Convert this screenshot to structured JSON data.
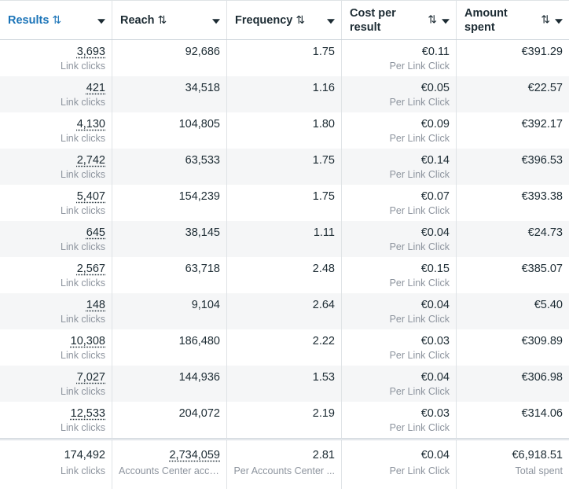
{
  "columns": [
    {
      "label": "Results",
      "active": true
    },
    {
      "label": "Reach"
    },
    {
      "label": "Frequency"
    },
    {
      "label": "Cost per result"
    },
    {
      "label": "Amount spent"
    }
  ],
  "sort_glyph": "⇅",
  "rows": [
    {
      "results": "3,693",
      "results_sub": "Link clicks",
      "reach": "92,686",
      "frequency": "1.75",
      "cost": "€0.11",
      "cost_sub": "Per Link Click",
      "spent": "€391.29"
    },
    {
      "results": "421",
      "results_sub": "Link clicks",
      "reach": "34,518",
      "frequency": "1.16",
      "cost": "€0.05",
      "cost_sub": "Per Link Click",
      "spent": "€22.57"
    },
    {
      "results": "4,130",
      "results_sub": "Link clicks",
      "reach": "104,805",
      "frequency": "1.80",
      "cost": "€0.09",
      "cost_sub": "Per Link Click",
      "spent": "€392.17"
    },
    {
      "results": "2,742",
      "results_sub": "Link clicks",
      "reach": "63,533",
      "frequency": "1.75",
      "cost": "€0.14",
      "cost_sub": "Per Link Click",
      "spent": "€396.53"
    },
    {
      "results": "5,407",
      "results_sub": "Link clicks",
      "reach": "154,239",
      "frequency": "1.75",
      "cost": "€0.07",
      "cost_sub": "Per Link Click",
      "spent": "€393.38"
    },
    {
      "results": "645",
      "results_sub": "Link clicks",
      "reach": "38,145",
      "frequency": "1.11",
      "cost": "€0.04",
      "cost_sub": "Per Link Click",
      "spent": "€24.73"
    },
    {
      "results": "2,567",
      "results_sub": "Link clicks",
      "reach": "63,718",
      "frequency": "2.48",
      "cost": "€0.15",
      "cost_sub": "Per Link Click",
      "spent": "€385.07"
    },
    {
      "results": "148",
      "results_sub": "Link clicks",
      "reach": "9,104",
      "frequency": "2.64",
      "cost": "€0.04",
      "cost_sub": "Per Link Click",
      "spent": "€5.40"
    },
    {
      "results": "10,308",
      "results_sub": "Link clicks",
      "reach": "186,480",
      "frequency": "2.22",
      "cost": "€0.03",
      "cost_sub": "Per Link Click",
      "spent": "€309.89"
    },
    {
      "results": "7,027",
      "results_sub": "Link clicks",
      "reach": "144,936",
      "frequency": "1.53",
      "cost": "€0.04",
      "cost_sub": "Per Link Click",
      "spent": "€306.98"
    },
    {
      "results": "12,533",
      "results_sub": "Link clicks",
      "reach": "204,072",
      "frequency": "2.19",
      "cost": "€0.03",
      "cost_sub": "Per Link Click",
      "spent": "€314.06"
    }
  ],
  "totals": {
    "results": "174,492",
    "results_sub": "Link clicks",
    "reach": "2,734,059",
    "reach_sub": "Accounts Center acco...",
    "frequency": "2.81",
    "frequency_sub": "Per Accounts Center ...",
    "cost": "€0.04",
    "cost_sub": "Per Link Click",
    "spent": "€6,918.51",
    "spent_sub": "Total spent"
  },
  "colors": {
    "accent": "#1b74b8",
    "alt_row": "#f5f6f7",
    "muted": "#8d949e",
    "border": "#dfe3e6"
  },
  "icons": {
    "sort": "sort-arrows-icon",
    "dropdown": "caret-down-icon"
  }
}
